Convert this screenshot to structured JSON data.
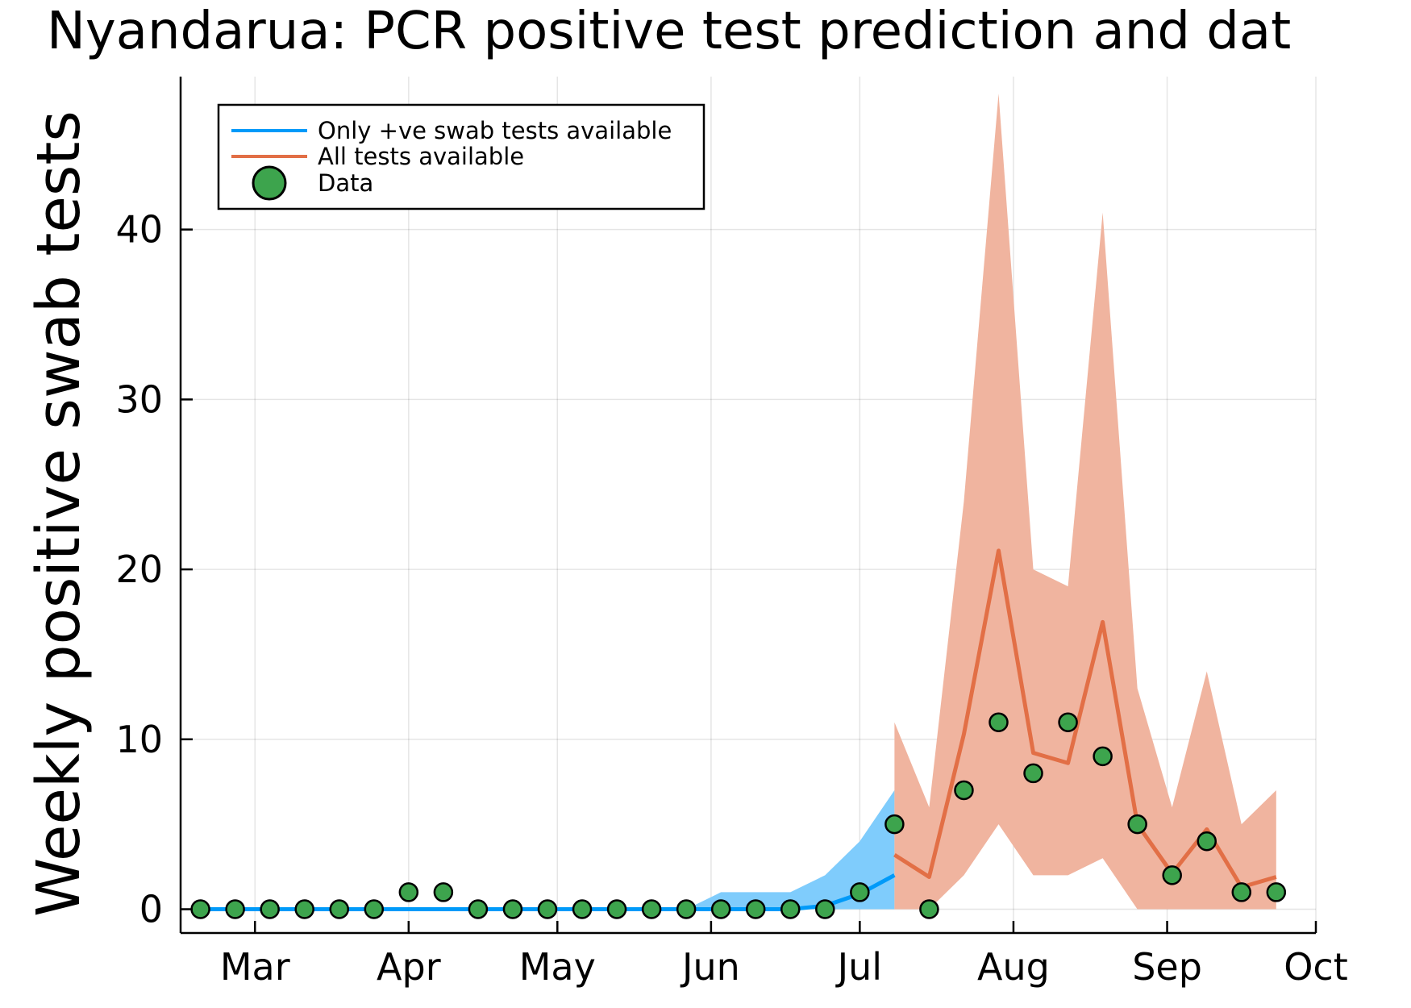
{
  "chart_data": {
    "type": "line",
    "title": "Nyandarua: PCR positive test prediction and dat",
    "xlabel": "",
    "ylabel": "Weekly positive swab tests",
    "xlim": [
      "2020-02-15",
      "2020-10-01"
    ],
    "ylim": [
      -1.4,
      49
    ],
    "y_ticks": [
      0,
      10,
      20,
      30,
      40
    ],
    "x_ticks": [
      {
        "date": "2020-03-01",
        "label": "Mar"
      },
      {
        "date": "2020-04-01",
        "label": "Apr"
      },
      {
        "date": "2020-05-01",
        "label": "May"
      },
      {
        "date": "2020-06-01",
        "label": "Jun"
      },
      {
        "date": "2020-07-01",
        "label": "Jul"
      },
      {
        "date": "2020-08-01",
        "label": "Aug"
      },
      {
        "date": "2020-09-01",
        "label": "Sep"
      },
      {
        "date": "2020-10-01",
        "label": "Oct"
      }
    ],
    "grid": true,
    "legend_position": "top-left",
    "series": [
      {
        "name": "Only +ve swab tests available",
        "color": "#009af9",
        "band_color": "#7fccfc",
        "x": [
          "2020-02-19",
          "2020-02-26",
          "2020-03-04",
          "2020-03-11",
          "2020-03-18",
          "2020-03-25",
          "2020-04-01",
          "2020-04-08",
          "2020-04-15",
          "2020-04-22",
          "2020-04-29",
          "2020-05-06",
          "2020-05-13",
          "2020-05-20",
          "2020-05-27",
          "2020-06-03",
          "2020-06-10",
          "2020-06-17",
          "2020-06-24",
          "2020-07-01",
          "2020-07-08"
        ],
        "y": [
          0,
          0,
          0,
          0,
          0,
          0,
          0,
          0,
          0,
          0,
          0,
          0,
          0,
          0,
          0,
          0,
          0,
          0,
          0.2,
          0.9,
          2.0
        ],
        "lower": [
          0,
          0,
          0,
          0,
          0,
          0,
          0,
          0,
          0,
          0,
          0,
          0,
          0,
          0,
          0,
          0,
          0,
          0,
          0,
          0,
          0
        ],
        "upper": [
          0,
          0,
          0,
          0,
          0,
          0,
          0,
          0,
          0,
          0,
          0,
          0,
          0,
          0,
          0,
          1,
          1,
          1,
          2,
          4,
          7
        ]
      },
      {
        "name": "All tests available",
        "color": "#e26f46",
        "band_color": "#f0b49f",
        "x": [
          "2020-07-08",
          "2020-07-15",
          "2020-07-22",
          "2020-07-29",
          "2020-08-05",
          "2020-08-12",
          "2020-08-19",
          "2020-08-26",
          "2020-09-02",
          "2020-09-09",
          "2020-09-16",
          "2020-09-23"
        ],
        "y": [
          3.2,
          1.9,
          10.3,
          21.1,
          9.2,
          8.6,
          16.9,
          5.0,
          2.1,
          4.7,
          1.3,
          1.9
        ],
        "lower": [
          0,
          0,
          2,
          5,
          2,
          2,
          3,
          0,
          0,
          0,
          0,
          0
        ],
        "upper": [
          11,
          6,
          24,
          48,
          20,
          19,
          41,
          13,
          6,
          14,
          5,
          7
        ]
      }
    ],
    "data_points": {
      "name": "Data",
      "color": "#3da44d",
      "x": [
        "2020-02-19",
        "2020-02-26",
        "2020-03-04",
        "2020-03-11",
        "2020-03-18",
        "2020-03-25",
        "2020-04-01",
        "2020-04-08",
        "2020-04-15",
        "2020-04-22",
        "2020-04-29",
        "2020-05-06",
        "2020-05-13",
        "2020-05-20",
        "2020-05-27",
        "2020-06-03",
        "2020-06-10",
        "2020-06-17",
        "2020-06-24",
        "2020-07-01",
        "2020-07-08",
        "2020-07-15",
        "2020-07-22",
        "2020-07-29",
        "2020-08-05",
        "2020-08-12",
        "2020-08-19",
        "2020-08-26",
        "2020-09-02",
        "2020-09-09",
        "2020-09-16",
        "2020-09-23"
      ],
      "y": [
        0,
        0,
        0,
        0,
        0,
        0,
        1,
        1,
        0,
        0,
        0,
        0,
        0,
        0,
        0,
        0,
        0,
        0,
        0,
        1,
        5,
        0,
        7,
        11,
        8,
        11,
        9,
        5,
        2,
        4,
        1,
        1
      ]
    }
  }
}
